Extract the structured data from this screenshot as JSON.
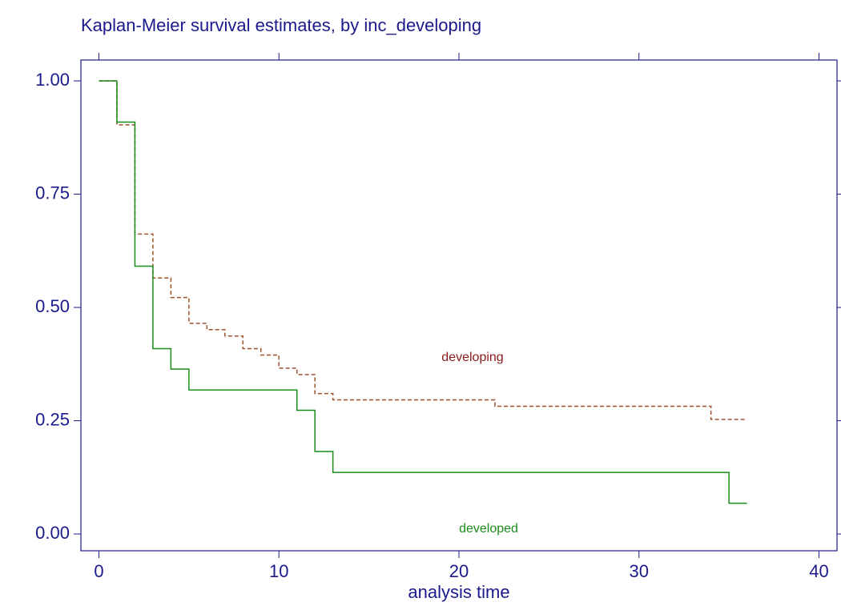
{
  "chart_data": {
    "type": "km-step",
    "title": "Kaplan-Meier survival estimates, by inc_developing",
    "x_label": "analysis time",
    "xlim": [
      -1,
      41
    ],
    "xticks": [
      0,
      10,
      20,
      30,
      40
    ],
    "ylim": [
      -0.037,
      1.046
    ],
    "yticks": [
      {
        "value": 0,
        "label": "0.00"
      },
      {
        "value": 0.25,
        "label": "0.25"
      },
      {
        "value": 0.5,
        "label": "0.50"
      },
      {
        "value": 0.75,
        "label": "0.75"
      },
      {
        "value": 1,
        "label": "1.00"
      }
    ],
    "series": [
      {
        "name": "developing",
        "color": "#a0522d",
        "label_color": "#8b1a1a",
        "dashed": true,
        "x": [
          0,
          1,
          2,
          3,
          4,
          5,
          6,
          7,
          8,
          9,
          10,
          11,
          12,
          13,
          22,
          34,
          36
        ],
        "values": [
          1.0,
          0.903,
          0.662,
          0.565,
          0.522,
          0.465,
          0.451,
          0.437,
          0.409,
          0.395,
          0.366,
          0.352,
          0.31,
          0.296,
          0.282,
          0.253,
          0.253
        ]
      },
      {
        "name": "developed",
        "color": "#1a8c1a",
        "label_color": "#1a8c1a",
        "dashed": false,
        "x": [
          0,
          1,
          2,
          3,
          4,
          5,
          11,
          12,
          13,
          35,
          36
        ],
        "values": [
          1.0,
          0.909,
          0.591,
          0.409,
          0.364,
          0.318,
          0.273,
          0.182,
          0.136,
          0.068,
          0.068
        ]
      }
    ]
  }
}
